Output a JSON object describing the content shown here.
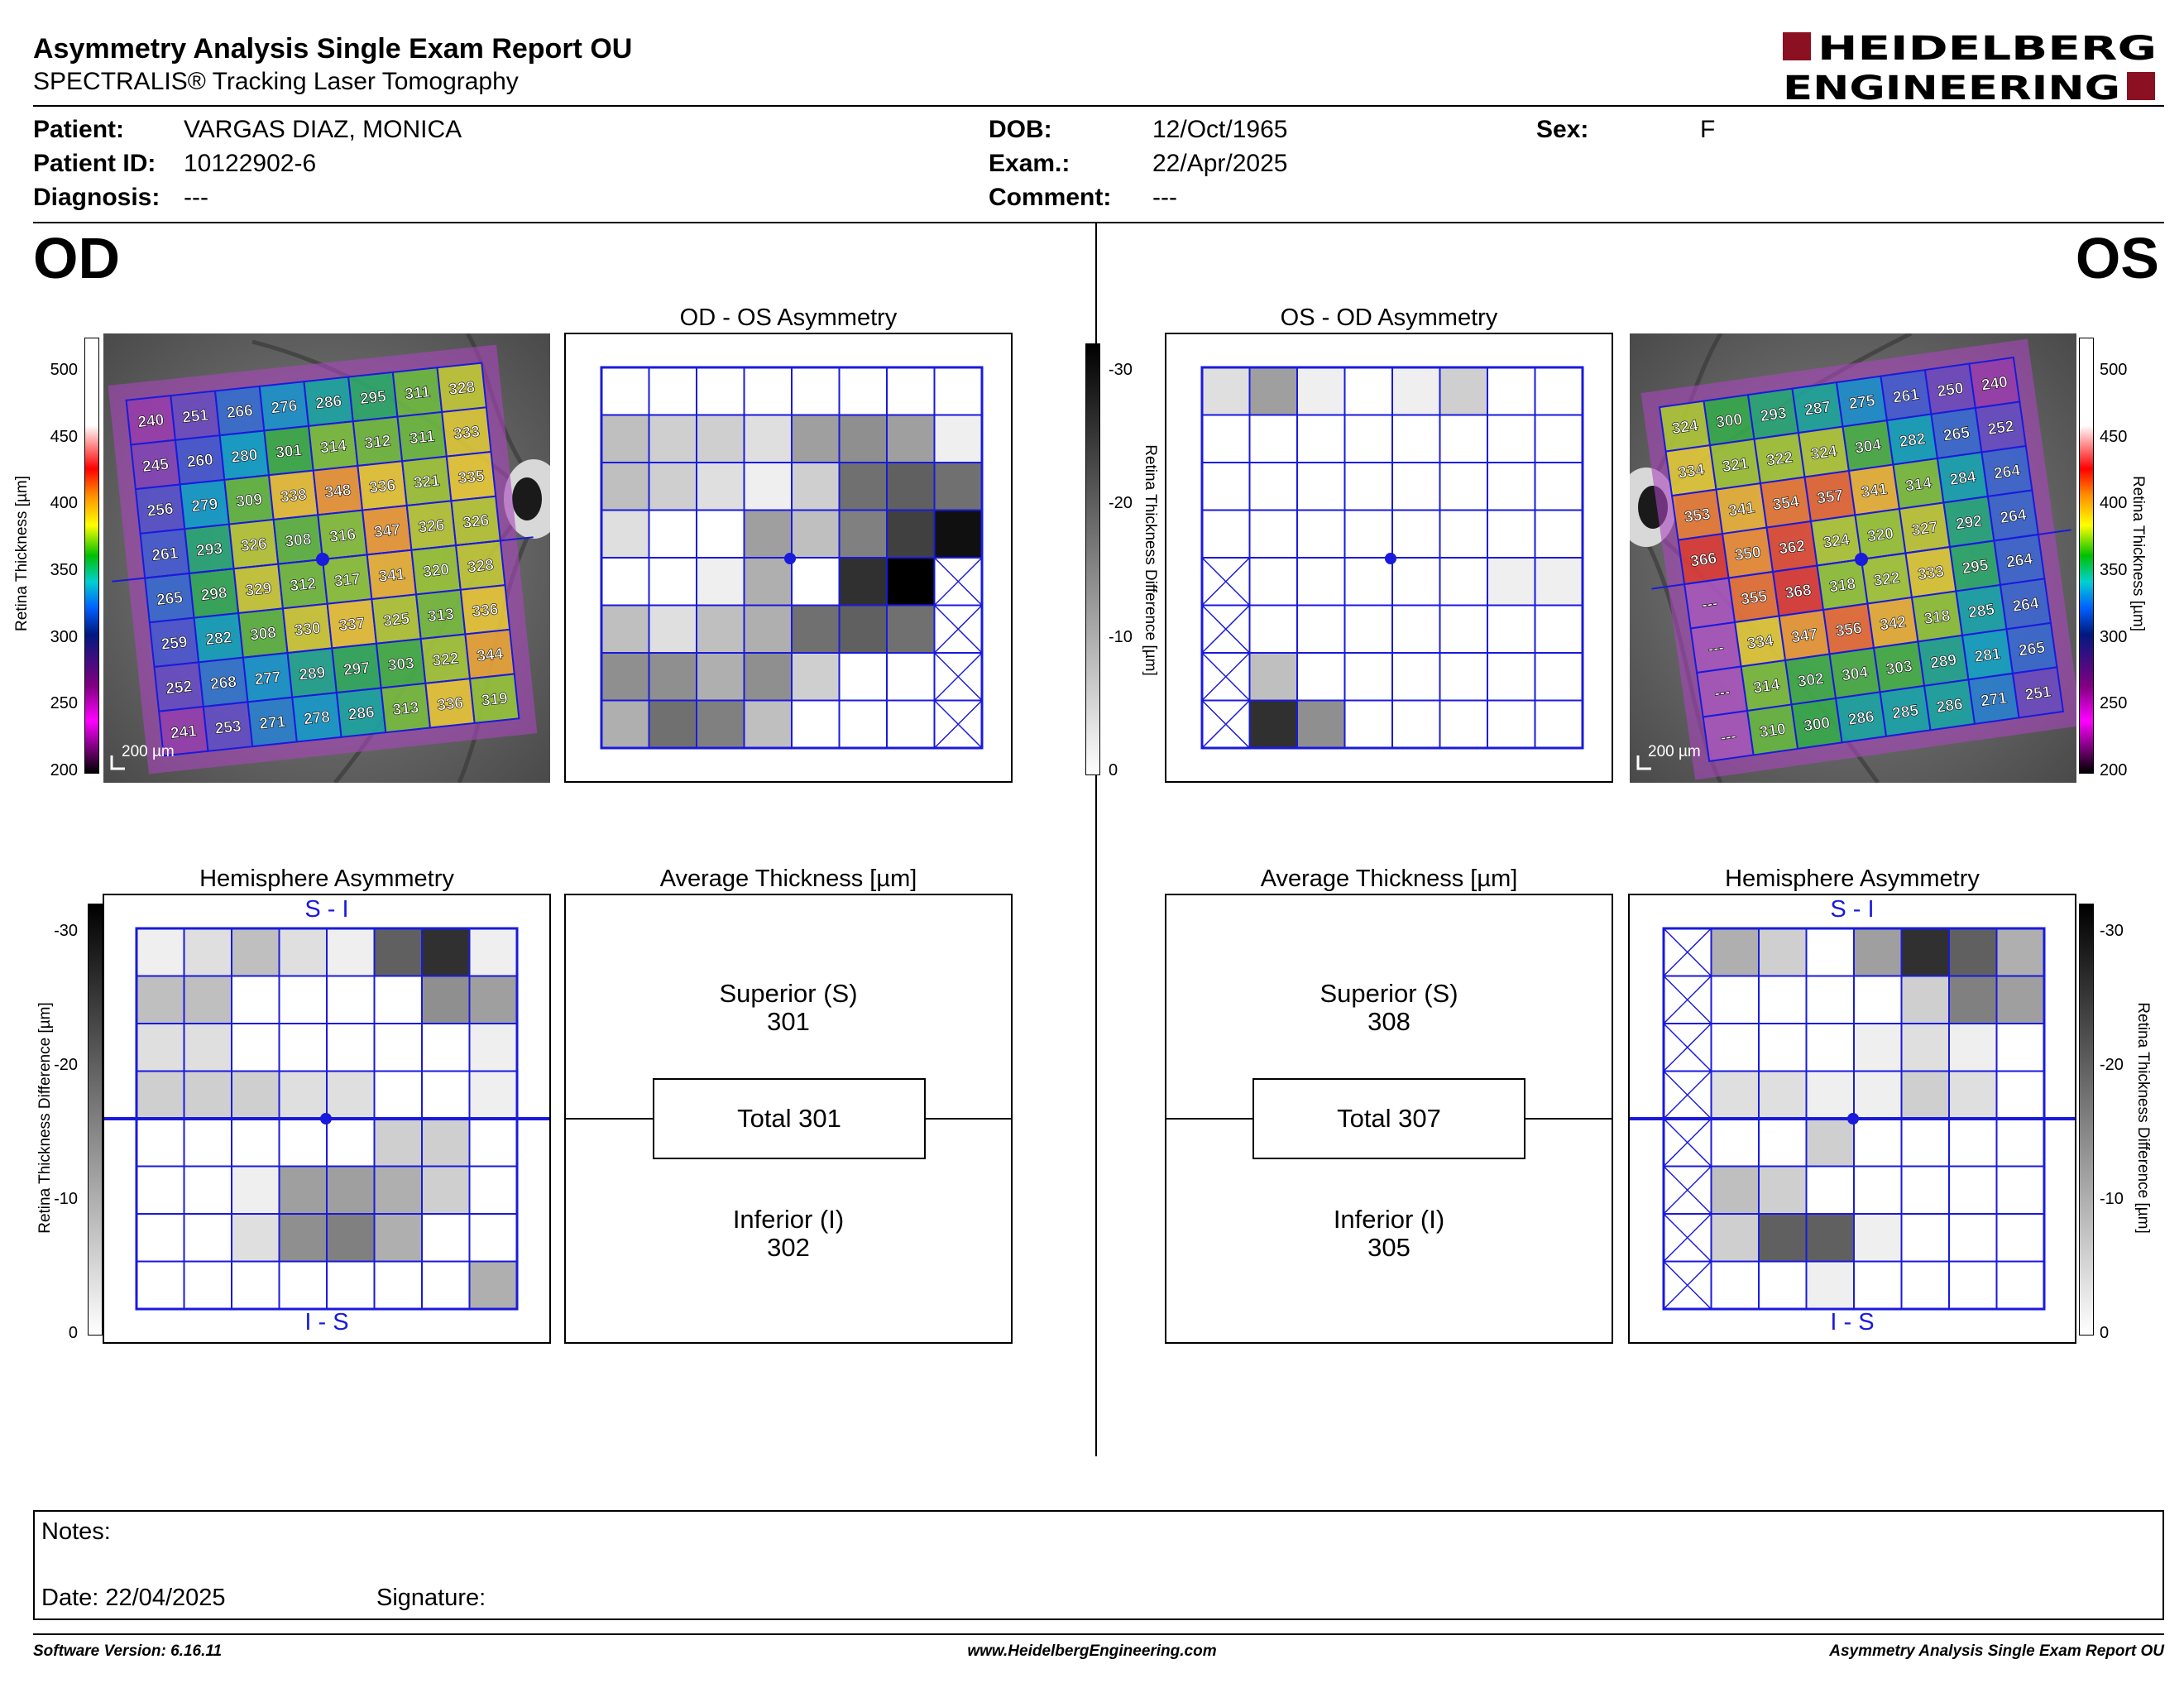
{
  "header": {
    "title": "Asymmetry Analysis Single Exam Report OU",
    "subtitle": "SPECTRALIS® Tracking Laser Tomography",
    "logo_line1": "HEIDELBERG",
    "logo_line2": "ENGINEERING",
    "logo_color": "#8b1022"
  },
  "patient": {
    "patient_label": "Patient:",
    "patient_value": "VARGAS DIAZ, MONICA",
    "id_label": "Patient ID:",
    "id_value": "10122902-6",
    "diagnosis_label": "Diagnosis:",
    "diagnosis_value": "---",
    "dob_label": "DOB:",
    "dob_value": "12/Oct/1965",
    "exam_label": "Exam.:",
    "exam_value": "22/Apr/2025",
    "comment_label": "Comment:",
    "comment_value": "---",
    "sex_label": "Sex:",
    "sex_value": "F"
  },
  "eyes": {
    "left": "OD",
    "right": "OS"
  },
  "titles": {
    "od_os": "OD - OS Asymmetry",
    "os_od": "OS - OD Asymmetry",
    "hemi": "Hemisphere Asymmetry",
    "avg": "Average Thickness [µm]",
    "si": "S - I",
    "is": "I - S"
  },
  "scales": {
    "thickness_label": "Retina Thickness [µm]",
    "thickness_ticks": [
      "500",
      "450",
      "400",
      "350",
      "300",
      "250",
      "200"
    ],
    "diff_label": "Retina Thickness Difference [µm]",
    "diff_ticks_mid": [
      "-30",
      "-20",
      "-10",
      "0"
    ],
    "diff_ticks_hemi": [
      "-30",
      "-20",
      "-10",
      "0"
    ],
    "scale_bar": "200 µm"
  },
  "od_grid": [
    [
      240,
      251,
      266,
      276,
      286,
      295,
      311,
      328
    ],
    [
      245,
      260,
      280,
      301,
      314,
      312,
      311,
      333
    ],
    [
      256,
      279,
      309,
      338,
      348,
      336,
      321,
      335
    ],
    [
      261,
      293,
      326,
      308,
      316,
      347,
      326,
      326
    ],
    [
      265,
      298,
      329,
      312,
      317,
      341,
      320,
      328
    ],
    [
      259,
      282,
      308,
      330,
      337,
      325,
      313,
      336
    ],
    [
      252,
      268,
      277,
      289,
      297,
      303,
      322,
      344
    ],
    [
      241,
      253,
      271,
      278,
      286,
      313,
      336,
      319
    ]
  ],
  "os_grid": [
    [
      324,
      300,
      293,
      287,
      275,
      261,
      250,
      240
    ],
    [
      334,
      321,
      322,
      324,
      304,
      282,
      265,
      252
    ],
    [
      353,
      341,
      354,
      357,
      341,
      314,
      284,
      264
    ],
    [
      366,
      350,
      362,
      324,
      320,
      327,
      292,
      264
    ],
    [
      "---",
      355,
      368,
      318,
      322,
      333,
      295,
      264
    ],
    [
      "---",
      334,
      347,
      356,
      342,
      318,
      285,
      264
    ],
    [
      "---",
      314,
      302,
      304,
      303,
      289,
      281,
      265
    ],
    [
      "---",
      310,
      300,
      286,
      285,
      286,
      271,
      251
    ]
  ],
  "od_asym": [
    [
      0,
      0,
      0,
      0,
      0,
      0,
      0,
      0
    ],
    [
      4,
      3,
      3,
      2,
      6,
      7,
      6,
      1
    ],
    [
      4,
      3,
      2,
      1,
      3,
      9,
      10,
      9
    ],
    [
      2,
      0,
      0,
      6,
      4,
      8,
      12,
      15
    ],
    [
      0,
      0,
      1,
      5,
      0,
      13,
      16,
      "x"
    ],
    [
      4,
      2,
      4,
      5,
      9,
      10,
      9,
      "x"
    ],
    [
      7,
      7,
      5,
      7,
      3,
      0,
      0,
      "x"
    ],
    [
      5,
      9,
      8,
      4,
      0,
      0,
      0,
      "x"
    ]
  ],
  "os_asym": [
    [
      2,
      6,
      1,
      0,
      1,
      3,
      0,
      0
    ],
    [
      0,
      0,
      0,
      0,
      0,
      0,
      0,
      0
    ],
    [
      0,
      0,
      0,
      0,
      0,
      0,
      0,
      0
    ],
    [
      0,
      0,
      0,
      0,
      0,
      0,
      0,
      0
    ],
    [
      "x",
      0,
      0,
      0,
      0,
      0,
      1,
      1
    ],
    [
      "x",
      0,
      0,
      0,
      0,
      0,
      0,
      0
    ],
    [
      "x",
      4,
      0,
      0,
      0,
      0,
      0,
      0
    ],
    [
      "x",
      13,
      7,
      0,
      0,
      0,
      0,
      0
    ]
  ],
  "od_hemi": [
    [
      1,
      2,
      4,
      2,
      1,
      10,
      13,
      1
    ],
    [
      4,
      4,
      0,
      0,
      0,
      0,
      7,
      6
    ],
    [
      2,
      2,
      0,
      0,
      0,
      0,
      0,
      1
    ],
    [
      3,
      3,
      3,
      2,
      2,
      0,
      0,
      1
    ],
    [
      0,
      0,
      0,
      0,
      0,
      3,
      3,
      0
    ],
    [
      0,
      0,
      1,
      6,
      6,
      5,
      3,
      0
    ],
    [
      0,
      0,
      2,
      7,
      8,
      5,
      0,
      0
    ],
    [
      0,
      0,
      0,
      0,
      0,
      0,
      0,
      5
    ]
  ],
  "os_hemi": [
    [
      "x",
      5,
      3,
      0,
      6,
      13,
      10,
      5
    ],
    [
      "x",
      0,
      0,
      0,
      0,
      3,
      8,
      6
    ],
    [
      "x",
      0,
      0,
      0,
      1,
      2,
      1,
      0
    ],
    [
      "x",
      2,
      2,
      1,
      1,
      3,
      2,
      0
    ],
    [
      "x",
      0,
      0,
      3,
      0,
      0,
      0,
      0
    ],
    [
      "x",
      4,
      3,
      0,
      0,
      0,
      0,
      0
    ],
    [
      "x",
      3,
      10,
      10,
      1,
      0,
      0,
      0
    ],
    [
      "x",
      0,
      0,
      1,
      0,
      0,
      0,
      0
    ]
  ],
  "od_avg": {
    "sup_label": "Superior (S)",
    "sup_value": "301",
    "total": "Total 301",
    "inf_label": "Inferior (I)",
    "inf_value": "302"
  },
  "os_avg": {
    "sup_label": "Superior (S)",
    "sup_value": "308",
    "total": "Total 307",
    "inf_label": "Inferior (I)",
    "inf_value": "305"
  },
  "notes": {
    "label": "Notes:",
    "date": "Date: 22/04/2025",
    "signature": "Signature:"
  },
  "footer": {
    "software": "Software Version: 6.16.11",
    "url": "www.HeidelbergEngineering.com",
    "report": "Asymmetry Analysis Single Exam Report OU"
  }
}
